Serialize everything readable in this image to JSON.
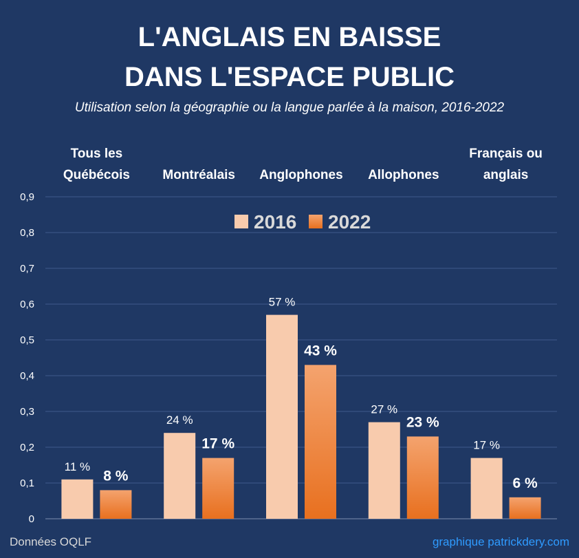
{
  "header": {
    "title_line_1": "L'ANGLAIS EN BAISSE",
    "title_line_2": "DANS L'ESPACE PUBLIC",
    "subtitle": "Utilisation selon la géographie ou la langue parlée à la maison, 2016-2022"
  },
  "footer": {
    "source": "Données OQLF",
    "credit": "graphique patrickdery.com"
  },
  "colors": {
    "background": "#1f3864",
    "bar_2016": "#f8cbad",
    "bar_2022_top": "#f4a36e",
    "bar_2022_bottom": "#e8701f",
    "grid": "#3f5a8c"
  },
  "chart_data": {
    "type": "bar",
    "categories": [
      [
        "Tous les",
        "Québécois"
      ],
      [
        "Montréalais"
      ],
      [
        "Anglophones"
      ],
      [
        "Allophones"
      ],
      [
        "Français ou",
        "anglais"
      ]
    ],
    "series": [
      {
        "name": "2016",
        "values": [
          0.11,
          0.24,
          0.57,
          0.27,
          0.17
        ],
        "labels": [
          "11 %",
          "24 %",
          "57 %",
          "27 %",
          "17 %"
        ]
      },
      {
        "name": "2022",
        "values": [
          0.08,
          0.17,
          0.43,
          0.23,
          0.06
        ],
        "labels": [
          "8 %",
          "17 %",
          "43 %",
          "23 %",
          "6 %"
        ]
      }
    ],
    "ylim": [
      0,
      0.9
    ],
    "yticks": [
      "0",
      "0,1",
      "0,2",
      "0,3",
      "0,4",
      "0,5",
      "0,6",
      "0,7",
      "0,8",
      "0,9"
    ],
    "grid": true,
    "legend": "top-center"
  }
}
